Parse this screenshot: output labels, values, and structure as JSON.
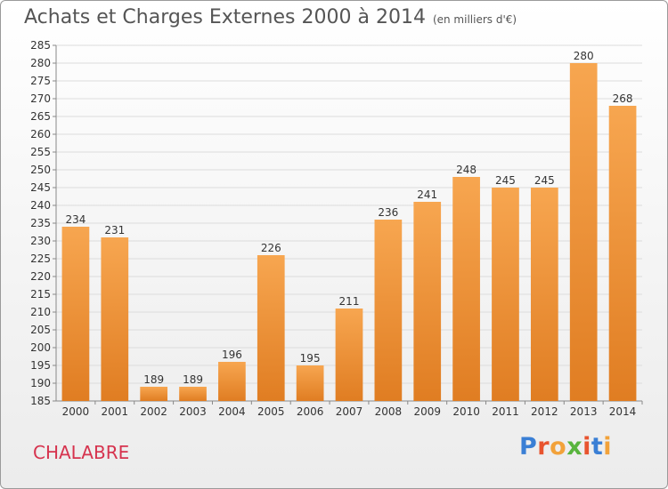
{
  "header": {
    "title": "Achats et Charges Externes 2000 à 2014",
    "subtitle": "(en milliers d'€)"
  },
  "footer": {
    "place": "CHALABRE",
    "logo": "Proxiti",
    "logo_letter_colors": [
      "#3a7fd5",
      "#e8542f",
      "#f2a23a",
      "#58b43d",
      "#e8542f",
      "#3a7fd5",
      "#f2a23a"
    ]
  },
  "chart_data": {
    "type": "bar",
    "title": "Achats et Charges Externes 2000 à 2014",
    "subtitle": "(en milliers d'€)",
    "categories": [
      "2000",
      "2001",
      "2002",
      "2003",
      "2004",
      "2005",
      "2006",
      "2007",
      "2008",
      "2009",
      "2010",
      "2011",
      "2012",
      "2013",
      "2014"
    ],
    "values": [
      234,
      231,
      189,
      189,
      196,
      226,
      195,
      211,
      236,
      241,
      248,
      245,
      245,
      280,
      268
    ],
    "ylim": [
      185,
      285
    ],
    "ytick_step": 5,
    "grid": true,
    "bar_color_top": "#f7a650",
    "bar_color_bottom": "#e07d22",
    "xlabel": "",
    "ylabel": ""
  }
}
